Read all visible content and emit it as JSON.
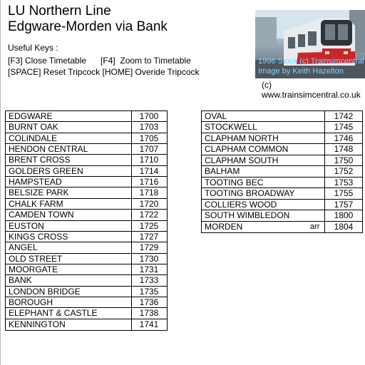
{
  "header": {
    "title": "LU Northern Line",
    "subtitle": "Edgware-Morden via Bank"
  },
  "keys": {
    "heading": "Useful Keys :",
    "line1": "[F3] Close Timetable      [F4]  Zoom to Timetable",
    "line2": "[SPACE] Reset Tripcock [HOME] Overide Tripcock"
  },
  "photo": {
    "caption1": "1996 Stock (c) Trainsimcentral",
    "caption2": "Image by Keith Hazelton"
  },
  "credit": "(c) www.trainsimcentral.co.uk",
  "colors": {
    "caption": "#7fd4ff",
    "train_red": "#c8262a"
  },
  "timetable_left": [
    {
      "station": "EDGWARE",
      "time": "1700"
    },
    {
      "station": "BURNT OAK",
      "time": "1703"
    },
    {
      "station": "COLINDALE",
      "time": "1705"
    },
    {
      "station": "HENDON CENTRAL",
      "time": "1707"
    },
    {
      "station": "BRENT CROSS",
      "time": "1710"
    },
    {
      "station": "GOLDERS GREEN",
      "time": "1714"
    },
    {
      "station": "HAMPSTEAD",
      "time": "1716"
    },
    {
      "station": "BELSIZE PARK",
      "time": "1718"
    },
    {
      "station": "CHALK FARM",
      "time": "1720"
    },
    {
      "station": "CAMDEN TOWN",
      "time": "1722"
    },
    {
      "station": "EUSTON",
      "time": "1725"
    },
    {
      "station": "KINGS CROSS",
      "time": "1727"
    },
    {
      "station": "ANGEL",
      "time": "1729"
    },
    {
      "station": "OLD STREET",
      "time": "1730"
    },
    {
      "station": "MOORGATE",
      "time": "1731"
    },
    {
      "station": "BANK",
      "time": "1733"
    },
    {
      "station": "LONDON BRIDGE",
      "time": "1735"
    },
    {
      "station": "BOROUGH",
      "time": "1736"
    },
    {
      "station": "ELEPHANT & CASTLE",
      "time": "1738"
    },
    {
      "station": "KENNINGTON",
      "time": "1741"
    }
  ],
  "timetable_right": [
    {
      "station": "OVAL",
      "time": "1742"
    },
    {
      "station": "STOCKWELL",
      "time": "1745"
    },
    {
      "station": "CLAPHAM NORTH",
      "time": "1746"
    },
    {
      "station": "CLAPHAM COMMON",
      "time": "1748"
    },
    {
      "station": "CLAPHAM SOUTH",
      "time": "1750"
    },
    {
      "station": "BALHAM",
      "time": "1752"
    },
    {
      "station": "TOOTING BEC",
      "time": "1753"
    },
    {
      "station": "TOOTING BROADWAY",
      "time": "1755"
    },
    {
      "station": "COLLIERS WOOD",
      "time": "1757"
    },
    {
      "station": "SOUTH WIMBLEDON",
      "time": "1800"
    },
    {
      "station": "MORDEN",
      "time": "1804",
      "note": "arr"
    }
  ]
}
